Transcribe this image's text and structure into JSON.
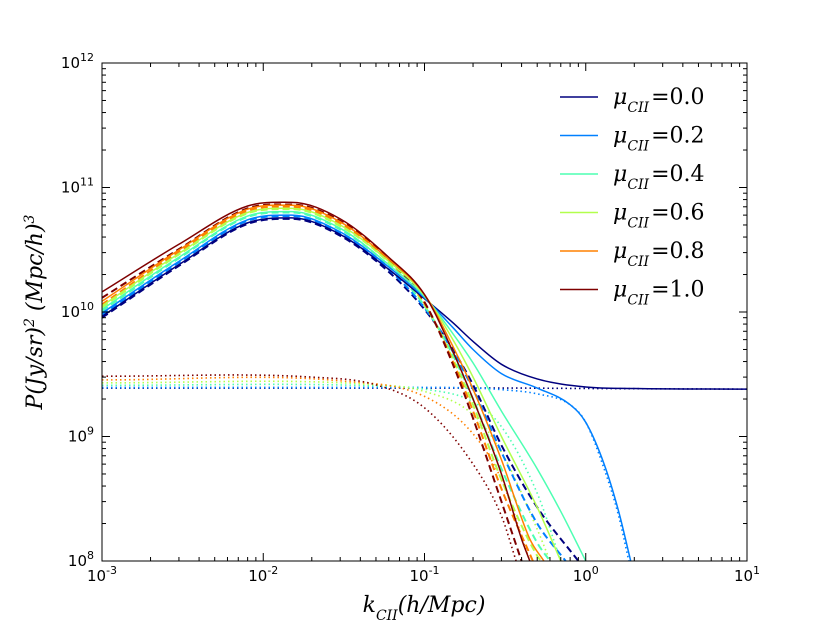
{
  "chart_data": {
    "type": "line",
    "title": "",
    "xlabel": "k_CII(h/Mpc)",
    "ylabel": "P(Jy/sr)^2 (Mpc/h)^3",
    "xscale": "log",
    "yscale": "log",
    "xlim": [
      0.001,
      10
    ],
    "ylim": [
      100000000,
      1000000000000
    ],
    "x_ticks": [
      {
        "value": 0.001,
        "base": "10",
        "exp": "-3"
      },
      {
        "value": 0.01,
        "base": "10",
        "exp": "-2"
      },
      {
        "value": 0.1,
        "base": "10",
        "exp": "-1"
      },
      {
        "value": 1,
        "base": "10",
        "exp": "0"
      },
      {
        "value": 10,
        "base": "10",
        "exp": "1"
      }
    ],
    "y_ticks": [
      {
        "value": 100000000,
        "base": "10",
        "exp": "8"
      },
      {
        "value": 1000000000,
        "base": "10",
        "exp": "9"
      },
      {
        "value": 10000000000,
        "base": "10",
        "exp": "10"
      },
      {
        "value": 100000000000,
        "base": "10",
        "exp": "11"
      },
      {
        "value": 1000000000000,
        "base": "10",
        "exp": "12"
      }
    ],
    "legend_position": "top-right",
    "line_styles": {
      "total": "solid",
      "clustering": "dashed",
      "shot_noise": "dotted"
    },
    "series": [
      {
        "name": "μ_CII=0.0",
        "mu": "0.0",
        "color": "#00007f",
        "solid": [
          [
            0.001,
            9200000000.0
          ],
          [
            0.003,
            24000000000.0
          ],
          [
            0.008,
            52000000000.0
          ],
          [
            0.015,
            57000000000.0
          ],
          [
            0.03,
            42000000000.0
          ],
          [
            0.06,
            22000000000.0
          ],
          [
            0.1,
            12800000000.0
          ],
          [
            0.15,
            8200000000.0
          ],
          [
            0.2,
            5800000000.0
          ],
          [
            0.3,
            3800000000.0
          ],
          [
            0.5,
            2900000000.0
          ],
          [
            1,
            2500000000.0
          ],
          [
            2,
            2430000000.0
          ],
          [
            10,
            2400000000.0
          ]
        ],
        "dashed": [
          [
            0.001,
            9000000000.0
          ],
          [
            0.003,
            23500000000.0
          ],
          [
            0.008,
            51000000000.0
          ],
          [
            0.015,
            56000000000.0
          ],
          [
            0.03,
            41000000000.0
          ],
          [
            0.06,
            21000000000.0
          ],
          [
            0.1,
            10500000000.0
          ],
          [
            0.15,
            5000000000.0
          ],
          [
            0.2,
            2600000000.0
          ],
          [
            0.3,
            850000000.0
          ],
          [
            0.5,
            270000000.0
          ],
          [
            0.9,
            100000000.0
          ]
        ],
        "dotted": [
          [
            0.001,
            2450000000.0
          ],
          [
            0.1,
            2450000000.0
          ],
          [
            0.3,
            2450000000.0
          ],
          [
            1,
            2430000000.0
          ],
          [
            10,
            2400000000.0
          ]
        ]
      },
      {
        "name": "μ_CII=0.2",
        "mu": "0.2",
        "color": "#0080ff",
        "solid": [
          [
            0.001,
            9800000000.0
          ],
          [
            0.003,
            25500000000.0
          ],
          [
            0.008,
            55000000000.0
          ],
          [
            0.015,
            60000000000.0
          ],
          [
            0.03,
            44000000000.0
          ],
          [
            0.06,
            23000000000.0
          ],
          [
            0.1,
            13000000000.0
          ],
          [
            0.15,
            7500000000.0
          ],
          [
            0.2,
            5000000000.0
          ],
          [
            0.3,
            3200000000.0
          ],
          [
            0.5,
            2450000000.0
          ],
          [
            0.8,
            1800000000.0
          ],
          [
            1,
            1300000000.0
          ],
          [
            1.3,
            600000000.0
          ],
          [
            1.6,
            250000000.0
          ],
          [
            1.9,
            100000000.0
          ]
        ],
        "dashed": [
          [
            0.001,
            9500000000.0
          ],
          [
            0.003,
            25000000000.0
          ],
          [
            0.008,
            54000000000.0
          ],
          [
            0.015,
            59000000000.0
          ],
          [
            0.03,
            43000000000.0
          ],
          [
            0.06,
            22000000000.0
          ],
          [
            0.1,
            10800000000.0
          ],
          [
            0.15,
            4800000000.0
          ],
          [
            0.2,
            2400000000.0
          ],
          [
            0.3,
            750000000.0
          ],
          [
            0.5,
            200000000.0
          ],
          [
            0.75,
            100000000.0
          ]
        ],
        "dotted": [
          [
            0.001,
            2480000000.0
          ],
          [
            0.1,
            2480000000.0
          ],
          [
            0.2,
            2450000000.0
          ],
          [
            0.3,
            2380000000.0
          ],
          [
            0.5,
            2200000000.0
          ],
          [
            0.8,
            1800000000.0
          ],
          [
            1,
            1300000000.0
          ],
          [
            1.3,
            550000000.0
          ],
          [
            1.6,
            230000000.0
          ],
          [
            1.85,
            100000000.0
          ]
        ]
      },
      {
        "name": "μ_CII=0.4",
        "mu": "0.4",
        "color": "#4dffb2",
        "solid": [
          [
            0.001,
            10500000000.0
          ],
          [
            0.003,
            27500000000.0
          ],
          [
            0.008,
            59000000000.0
          ],
          [
            0.015,
            64000000000.0
          ],
          [
            0.03,
            47000000000.0
          ],
          [
            0.06,
            24000000000.0
          ],
          [
            0.1,
            13300000000.0
          ],
          [
            0.15,
            6700000000.0
          ],
          [
            0.2,
            3900000000.0
          ],
          [
            0.3,
            1600000000.0
          ],
          [
            0.5,
            550000000.0
          ],
          [
            0.7,
            250000000.0
          ],
          [
            1,
            100000000.0
          ]
        ],
        "dashed": [
          [
            0.001,
            10200000000.0
          ],
          [
            0.003,
            27000000000.0
          ],
          [
            0.008,
            58000000000.0
          ],
          [
            0.015,
            63000000000.0
          ],
          [
            0.03,
            46000000000.0
          ],
          [
            0.06,
            23500000000.0
          ],
          [
            0.1,
            11200000000.0
          ],
          [
            0.15,
            4500000000.0
          ],
          [
            0.2,
            2000000000.0
          ],
          [
            0.3,
            550000000.0
          ],
          [
            0.5,
            140000000.0
          ],
          [
            0.6,
            100000000.0
          ]
        ],
        "dotted": [
          [
            0.001,
            2580000000.0
          ],
          [
            0.05,
            2550000000.0
          ],
          [
            0.1,
            2400000000.0
          ],
          [
            0.2,
            1900000000.0
          ],
          [
            0.3,
            1200000000.0
          ],
          [
            0.5,
            350000000.0
          ],
          [
            0.7,
            100000000.0
          ]
        ]
      },
      {
        "name": "μ_CII=0.6",
        "mu": "0.6",
        "color": "#b2ff4d",
        "solid": [
          [
            0.001,
            11200000000.0
          ],
          [
            0.003,
            29500000000.0
          ],
          [
            0.008,
            63000000000.0
          ],
          [
            0.015,
            68000000000.0
          ],
          [
            0.03,
            50000000000.0
          ],
          [
            0.06,
            25500000000.0
          ],
          [
            0.1,
            13600000000.0
          ],
          [
            0.15,
            6000000000.0
          ],
          [
            0.2,
            3000000000.0
          ],
          [
            0.3,
            1000000000.0
          ],
          [
            0.5,
            270000000.0
          ],
          [
            0.7,
            100000000.0
          ]
        ],
        "dashed": [
          [
            0.001,
            10900000000.0
          ],
          [
            0.003,
            29000000000.0
          ],
          [
            0.008,
            62000000000.0
          ],
          [
            0.015,
            67000000000.0
          ],
          [
            0.03,
            49000000000.0
          ],
          [
            0.06,
            25000000000.0
          ],
          [
            0.1,
            11500000000.0
          ],
          [
            0.15,
            4200000000.0
          ],
          [
            0.2,
            1800000000.0
          ],
          [
            0.3,
            450000000.0
          ],
          [
            0.5,
            110000000.0
          ],
          [
            0.53,
            100000000.0
          ]
        ],
        "dotted": [
          [
            0.001,
            2700000000.0
          ],
          [
            0.04,
            2650000000.0
          ],
          [
            0.1,
            2300000000.0
          ],
          [
            0.2,
            1500000000.0
          ],
          [
            0.3,
            750000000.0
          ],
          [
            0.5,
            180000000.0
          ],
          [
            0.6,
            100000000.0
          ]
        ]
      },
      {
        "name": "μ_CII=0.8",
        "mu": "0.8",
        "color": "#ff8000",
        "solid": [
          [
            0.001,
            12200000000.0
          ],
          [
            0.003,
            31500000000.0
          ],
          [
            0.008,
            67000000000.0
          ],
          [
            0.015,
            72000000000.0
          ],
          [
            0.03,
            53000000000.0
          ],
          [
            0.06,
            26500000000.0
          ],
          [
            0.1,
            13800000000.0
          ],
          [
            0.15,
            5300000000.0
          ],
          [
            0.2,
            2400000000.0
          ],
          [
            0.3,
            650000000.0
          ],
          [
            0.45,
            150000000.0
          ],
          [
            0.55,
            100000000.0
          ]
        ],
        "dashed": [
          [
            0.001,
            11500000000.0
          ],
          [
            0.003,
            30500000000.0
          ],
          [
            0.008,
            65000000000.0
          ],
          [
            0.015,
            70000000000.0
          ],
          [
            0.03,
            51500000000.0
          ],
          [
            0.06,
            26000000000.0
          ],
          [
            0.1,
            11800000000.0
          ],
          [
            0.15,
            4000000000.0
          ],
          [
            0.2,
            1600000000.0
          ],
          [
            0.3,
            380000000.0
          ],
          [
            0.47,
            100000000.0
          ]
        ],
        "dotted": [
          [
            0.001,
            2850000000.0
          ],
          [
            0.03,
            2800000000.0
          ],
          [
            0.1,
            2100000000.0
          ],
          [
            0.2,
            1050000000.0
          ],
          [
            0.3,
            450000000.0
          ],
          [
            0.45,
            100000000.0
          ]
        ]
      },
      {
        "name": "μ_CII=1.0",
        "mu": "1.0",
        "color": "#7f0000",
        "solid": [
          [
            0.001,
            14500000000.0
          ],
          [
            0.003,
            35000000000.0
          ],
          [
            0.008,
            71000000000.0
          ],
          [
            0.015,
            76000000000.0
          ],
          [
            0.03,
            56000000000.0
          ],
          [
            0.06,
            27500000000.0
          ],
          [
            0.1,
            13800000000.0
          ],
          [
            0.15,
            4800000000.0
          ],
          [
            0.2,
            2000000000.0
          ],
          [
            0.3,
            500000000.0
          ],
          [
            0.4,
            150000000.0
          ],
          [
            0.45,
            100000000.0
          ]
        ],
        "dashed": [
          [
            0.001,
            13000000000.0
          ],
          [
            0.003,
            32000000000.0
          ],
          [
            0.008,
            68000000000.0
          ],
          [
            0.015,
            73000000000.0
          ],
          [
            0.03,
            54000000000.0
          ],
          [
            0.06,
            26500000000.0
          ],
          [
            0.1,
            12000000000.0
          ],
          [
            0.15,
            3800000000.0
          ],
          [
            0.2,
            1400000000.0
          ],
          [
            0.3,
            300000000.0
          ],
          [
            0.4,
            100000000.0
          ]
        ],
        "dotted": [
          [
            0.001,
            3050000000.0
          ],
          [
            0.02,
            3000000000.0
          ],
          [
            0.05,
            2600000000.0
          ],
          [
            0.1,
            1700000000.0
          ],
          [
            0.2,
            600000000.0
          ],
          [
            0.3,
            230000000.0
          ],
          [
            0.37,
            100000000.0
          ]
        ]
      }
    ]
  }
}
